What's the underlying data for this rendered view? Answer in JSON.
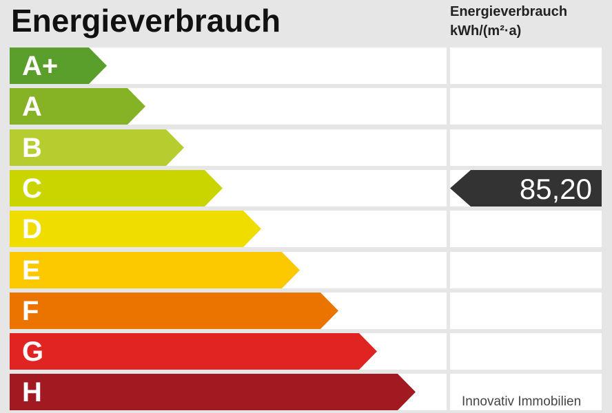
{
  "title": "Energieverbrauch",
  "column_header": {
    "line1": "Energieverbrauch",
    "line2": "kWh/(m²·a)"
  },
  "classes": [
    {
      "label": "A+",
      "color": "#5a9e2b"
    },
    {
      "label": "A",
      "color": "#86b226"
    },
    {
      "label": "B",
      "color": "#b7cd2f"
    },
    {
      "label": "C",
      "color": "#cad500"
    },
    {
      "label": "D",
      "color": "#f0dd00"
    },
    {
      "label": "E",
      "color": "#fcc800"
    },
    {
      "label": "F",
      "color": "#eb7400"
    },
    {
      "label": "G",
      "color": "#e02421"
    },
    {
      "label": "H",
      "color": "#a11a22"
    }
  ],
  "marker": {
    "value": "85,20",
    "class": "C",
    "color": "#333333"
  },
  "footer": "Innovativ Immobilien"
}
